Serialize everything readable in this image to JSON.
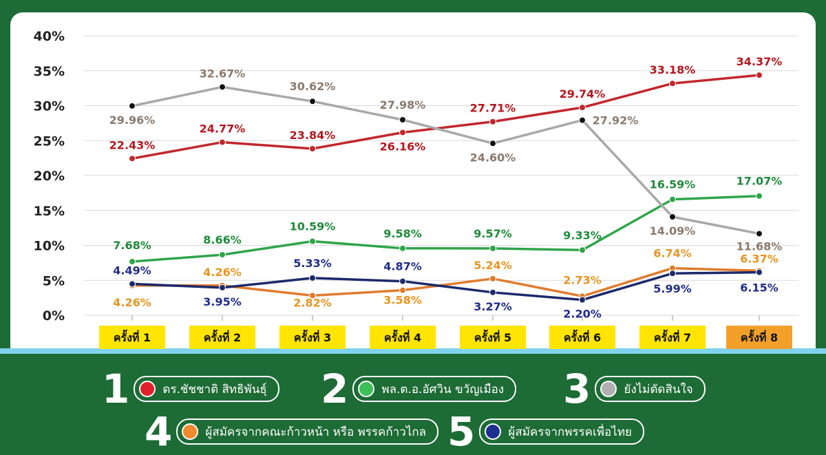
{
  "chart_data": {
    "type": "line",
    "title": "",
    "categories": [
      "ครั้งที่ 1",
      "ครั้งที่ 2",
      "ครั้งที่ 3",
      "ครั้งที่ 4",
      "ครั้งที่ 5",
      "ครั้งที่ 6",
      "ครั้งที่ 7",
      "ครั้งที่ 8"
    ],
    "y_ticks": [
      "0%",
      "5%",
      "10%",
      "15%",
      "20%",
      "25%",
      "30%",
      "35%",
      "40%"
    ],
    "ylim": [
      0,
      40
    ],
    "grid": true,
    "series": [
      {
        "name": "ดร.ชัชชาติ สิทธิพันธุ์",
        "color": "#c1272d",
        "label_color": "#b5161e",
        "values": [
          22.43,
          24.77,
          23.84,
          26.16,
          27.71,
          29.74,
          33.18,
          34.37
        ],
        "labels": [
          "22.43%",
          "24.77%",
          "23.84%",
          "26.16%",
          "27.71%",
          "29.74%",
          "33.18%",
          "34.37%"
        ]
      },
      {
        "name": "พล.ต.อ.อัศวิน ขวัญเมือง",
        "color": "#2fa54a",
        "label_color": "#1f8a3a",
        "values": [
          7.68,
          8.66,
          10.59,
          9.58,
          9.57,
          9.33,
          16.59,
          17.07
        ],
        "labels": [
          "7.68%",
          "8.66%",
          "10.59%",
          "9.58%",
          "9.57%",
          "9.33%",
          "16.59%",
          "17.07%"
        ]
      },
      {
        "name": "ยังไม่ตัดสินใจ",
        "color": "#a8a8a8",
        "label_color": "#8a7a6e",
        "values": [
          29.96,
          32.67,
          30.62,
          27.98,
          24.6,
          27.92,
          14.09,
          11.68
        ],
        "labels": [
          "29.96%",
          "32.67%",
          "30.62%",
          "27.98%",
          "24.60%",
          "27.92%",
          "14.09%",
          "11.68%"
        ]
      },
      {
        "name": "ผู้สมัครจากคณะก้าวหน้า หรือ พรรคก้าวไกล",
        "color": "#e07b2c",
        "label_color": "#e8941f",
        "values": [
          4.26,
          4.26,
          2.82,
          3.58,
          5.24,
          2.73,
          6.74,
          6.37
        ],
        "labels": [
          "4.26%",
          "4.26%",
          "2.82%",
          "3.58%",
          "5.24%",
          "2.73%",
          "6.74%",
          "6.37%"
        ]
      },
      {
        "name": "ผู้สมัครจากพรรคเพื่อไทย",
        "color": "#1c2a6b",
        "label_color": "#1f2d86",
        "values": [
          4.49,
          3.95,
          5.33,
          4.87,
          3.27,
          2.2,
          5.99,
          6.15
        ],
        "labels": [
          "4.49%",
          "3.95%",
          "5.33%",
          "4.87%",
          "3.27%",
          "2.20%",
          "5.99%",
          "6.15%"
        ]
      }
    ]
  },
  "legend": {
    "items": [
      {
        "number": "1",
        "label": "ดร.ชัชชาติ สิทธิพันธุ์",
        "dot_color": "#e0202a"
      },
      {
        "number": "2",
        "label": "พล.ต.อ.อัศวิน ขวัญเมือง",
        "dot_color": "#3fbf5a"
      },
      {
        "number": "3",
        "label": "ยังไม่ตัดสินใจ",
        "dot_color": "#b0b0b0"
      },
      {
        "number": "4",
        "label": "ผู้สมัครจากคณะก้าวหน้า หรือ พรรคก้าวไกล",
        "dot_color": "#f08a30"
      },
      {
        "number": "5",
        "label": "ผู้สมัครจากพรรคเพื่อไทย",
        "dot_color": "#1f2f8f"
      }
    ]
  }
}
